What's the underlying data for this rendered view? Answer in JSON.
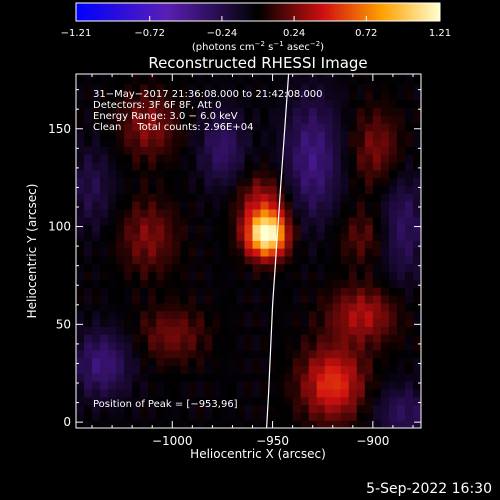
{
  "chart_data": {
    "type": "heatmap",
    "title": "Reconstructed RHESSI Image",
    "xlabel": "Heliocentric X (arcsec)",
    "ylabel": "Heliocentric Y (arcsec)",
    "xlim": [
      -1048,
      -876
    ],
    "ylim": [
      -3,
      178
    ],
    "x_ticks": [
      -1000,
      -950,
      -900
    ],
    "x_tick_labels": [
      "−1000",
      "−950",
      "−900"
    ],
    "y_ticks": [
      0,
      50,
      100,
      150
    ],
    "y_tick_labels": [
      "0",
      "50",
      "100",
      "150"
    ],
    "colorbar": {
      "min": -1.21,
      "max": 1.21,
      "ticks": [
        -1.21,
        -0.72,
        -0.24,
        0.24,
        0.72,
        1.21
      ],
      "tick_labels": [
        "−1.21",
        "−0.72",
        "−0.24",
        "0.24",
        "0.72",
        "1.21"
      ],
      "label_base": "(photons cm",
      "label_exp1": "−2",
      "label_mid": " s",
      "label_exp2": "−1",
      "label_mid2": " asec",
      "label_exp3": "−2",
      "label_end": ")"
    },
    "annotations": [
      "31−May−2017 21:36:08.000 to 21:42:08.000",
      "Detectors: 3F 6F 8F, Att 0",
      "Energy Range: 3.0 − 6.0 keV",
      "Clean     Total counts: 2.96E+04"
    ],
    "peak_label": "Position of Peak = [−953,96]",
    "peak": {
      "x": -953,
      "y": 96
    },
    "limb": [
      [
        -942,
        178
      ],
      [
        -946,
        120
      ],
      [
        -950,
        60
      ],
      [
        -952,
        15
      ],
      [
        -953,
        -3
      ]
    ],
    "sources": [
      {
        "x": -953,
        "y": 96,
        "amp": 1.25,
        "sx": 7,
        "sy": 8
      },
      {
        "x": -955,
        "y": 113,
        "amp": 0.35,
        "sx": 9,
        "sy": 10
      },
      {
        "x": -920,
        "y": 20,
        "amp": 0.55,
        "sx": 11,
        "sy": 13
      },
      {
        "x": -905,
        "y": 55,
        "amp": 0.38,
        "sx": 12,
        "sy": 10
      },
      {
        "x": -1012,
        "y": 152,
        "amp": 0.3,
        "sx": 10,
        "sy": 12
      },
      {
        "x": -1012,
        "y": 95,
        "amp": 0.28,
        "sx": 10,
        "sy": 13
      },
      {
        "x": -1000,
        "y": 45,
        "amp": 0.25,
        "sx": 12,
        "sy": 10
      },
      {
        "x": -898,
        "y": 140,
        "amp": 0.27,
        "sx": 9,
        "sy": 14
      },
      {
        "x": -905,
        "y": 95,
        "amp": 0.2,
        "sx": 9,
        "sy": 10
      },
      {
        "x": -1035,
        "y": 30,
        "amp": -0.38,
        "sx": 10,
        "sy": 12
      },
      {
        "x": -930,
        "y": 135,
        "amp": -0.4,
        "sx": 10,
        "sy": 22
      },
      {
        "x": -975,
        "y": 140,
        "amp": -0.32,
        "sx": 8,
        "sy": 14
      },
      {
        "x": -885,
        "y": 100,
        "amp": -0.3,
        "sx": 8,
        "sy": 20
      },
      {
        "x": -885,
        "y": 5,
        "amp": -0.28,
        "sx": 10,
        "sy": 10
      },
      {
        "x": -1040,
        "y": 120,
        "amp": -0.22,
        "sx": 8,
        "sy": 15
      }
    ]
  },
  "footer": {
    "date_time": "5-Sep-2022 16:30"
  }
}
